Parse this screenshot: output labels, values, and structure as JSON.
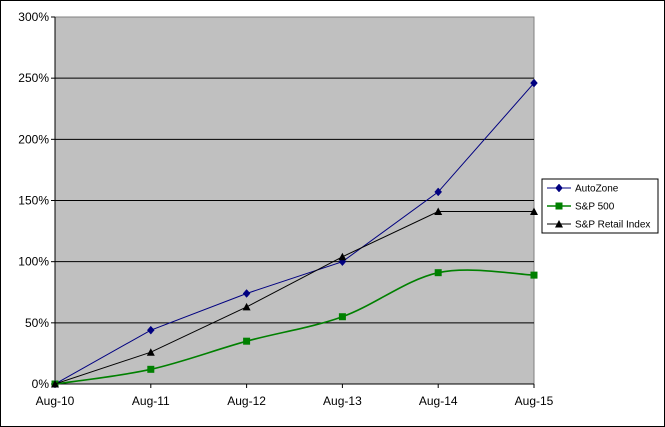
{
  "chart_data": {
    "type": "line",
    "categories": [
      "Aug-10",
      "Aug-11",
      "Aug-12",
      "Aug-13",
      "Aug-14",
      "Aug-15"
    ],
    "ylim": [
      0,
      300
    ],
    "yticks": [
      0,
      50,
      100,
      150,
      200,
      250,
      300
    ],
    "ytick_labels": [
      "0%",
      "50%",
      "100%",
      "150%",
      "200%",
      "250%",
      "300%"
    ],
    "grid": "horizontal",
    "plot_background": "#c0c0c0",
    "legend_position": "right",
    "series": [
      {
        "name": "AutoZone",
        "values": [
          0,
          44,
          74,
          100,
          157,
          246
        ],
        "color": "#000080",
        "marker": "diamond",
        "smooth": false
      },
      {
        "name": "S&P 500",
        "values": [
          0,
          12,
          35,
          55,
          91,
          89
        ],
        "color": "#008000",
        "marker": "square",
        "smooth": true
      },
      {
        "name": "S&P Retail Index",
        "values": [
          0,
          26,
          63,
          104,
          141,
          141
        ],
        "color": "#000000",
        "marker": "triangle",
        "smooth": false
      }
    ]
  }
}
